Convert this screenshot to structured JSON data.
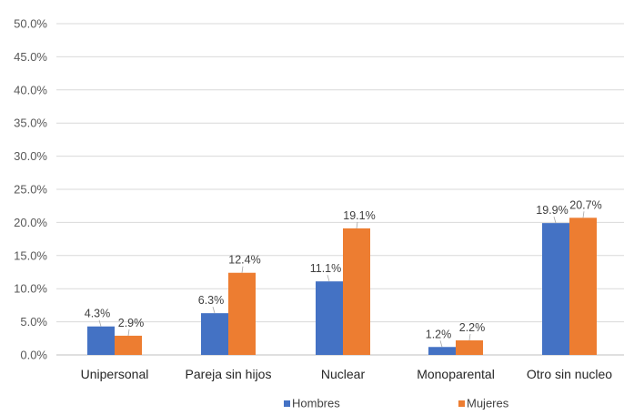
{
  "chart_data": {
    "type": "bar",
    "categories": [
      "Unipersonal",
      "Pareja sin hijos",
      "Nuclear",
      "Monoparental",
      "Otro sin nucleo"
    ],
    "series": [
      {
        "name": "Hombres",
        "values": [
          4.3,
          6.3,
          11.1,
          1.2,
          19.9
        ],
        "color": "#4472c4",
        "labels": [
          "4.3%",
          "6.3%",
          "11.1%",
          "1.2%",
          "19.9%"
        ]
      },
      {
        "name": "Mujeres",
        "values": [
          2.9,
          12.4,
          19.1,
          2.2,
          20.7
        ],
        "color": "#ed7d31",
        "labels": [
          "2.9%",
          "12.4%",
          "19.1%",
          "2.2%",
          "20.7%"
        ]
      }
    ],
    "ylim": [
      0,
      50
    ],
    "yticks": [
      "0.0%",
      "5.0%",
      "10.0%",
      "15.0%",
      "20.0%",
      "25.0%",
      "30.0%",
      "35.0%",
      "40.0%",
      "45.0%",
      "50.0%"
    ],
    "grid": true,
    "legend_position": "bottom"
  }
}
